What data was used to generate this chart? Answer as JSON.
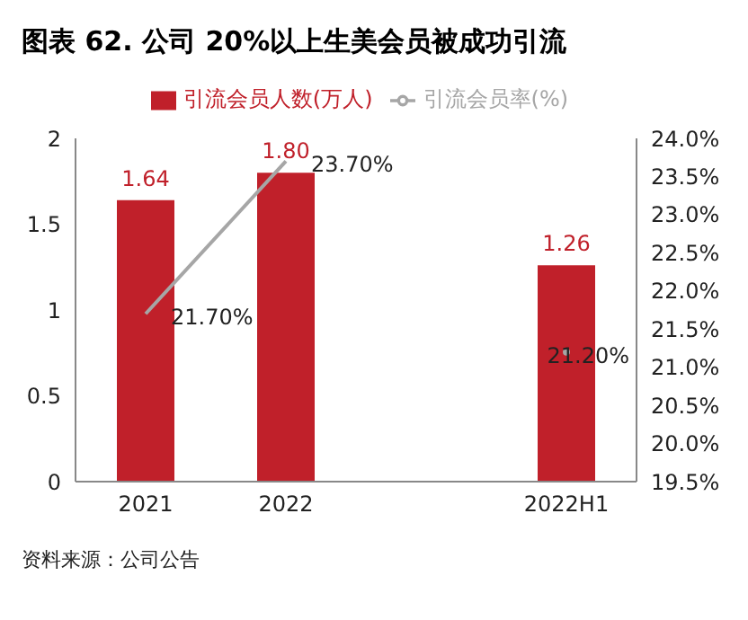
{
  "chart_data": {
    "type": "bar",
    "title": "图表 62. 公司 20%以上生美会员被成功引流",
    "categories": [
      "2021",
      "2022",
      null,
      "2022H1"
    ],
    "series": [
      {
        "name": "引流会员人数(万人)",
        "color": "#c0202a",
        "values": [
          1.64,
          1.8,
          null,
          1.26
        ],
        "value_labels": [
          "1.64",
          "1.80",
          null,
          "1.26"
        ]
      },
      {
        "name": "引流会员率(%)",
        "type": "line",
        "axis": "y2",
        "color": "#a6a6a6",
        "values": [
          21.7,
          23.7,
          null,
          21.2
        ],
        "value_labels": [
          "21.70%",
          "23.70%",
          null,
          "21.20%"
        ]
      }
    ],
    "ylim": [
      0,
      2
    ],
    "yticks": [
      0,
      0.5,
      1,
      1.5,
      2
    ],
    "y2lim": [
      19.5,
      24
    ],
    "y2ticks": [
      {
        "value": 19.5,
        "label": "19.5%"
      },
      {
        "value": 20,
        "label": "20.0%"
      },
      {
        "value": 20.5,
        "label": "20.5%"
      },
      {
        "value": 21,
        "label": "21.0%"
      },
      {
        "value": 21.5,
        "label": "21.5%"
      },
      {
        "value": 22,
        "label": "22.0%"
      },
      {
        "value": 22.5,
        "label": "22.5%"
      },
      {
        "value": 23,
        "label": "23.0%"
      },
      {
        "value": 23.5,
        "label": "23.5%"
      },
      {
        "value": 24,
        "label": "24.0%"
      }
    ],
    "legend": "top",
    "grid": false,
    "annotations": [
      "资料来源：公司公告"
    ]
  }
}
